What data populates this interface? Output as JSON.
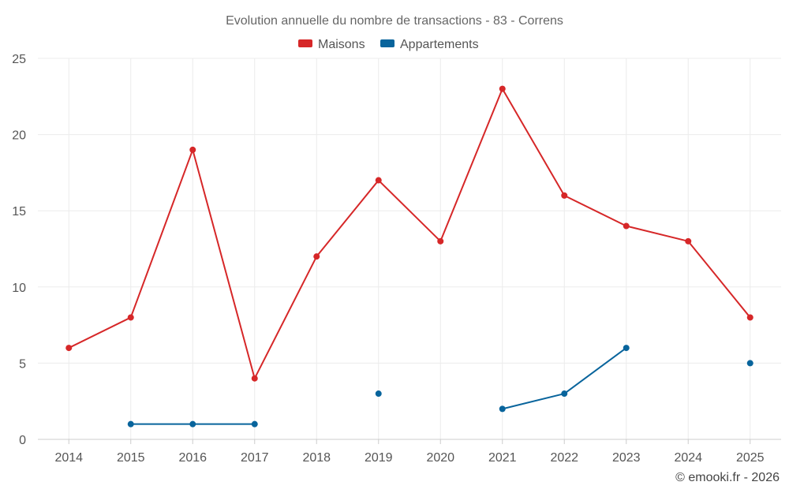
{
  "chart_data": {
    "type": "line",
    "title": "Evolution annuelle du nombre de transactions - 83 - Correns",
    "categories": [
      "2014",
      "2015",
      "2016",
      "2017",
      "2018",
      "2019",
      "2020",
      "2021",
      "2022",
      "2023",
      "2024",
      "2025"
    ],
    "series": [
      {
        "name": "Maisons",
        "color": "#d62728",
        "values": [
          6,
          8,
          19,
          4,
          12,
          17,
          13,
          23,
          16,
          14,
          13,
          8
        ]
      },
      {
        "name": "Appartements",
        "color": "#08649c",
        "values": [
          null,
          1,
          1,
          1,
          null,
          3,
          null,
          2,
          3,
          6,
          null,
          5
        ]
      }
    ],
    "ylim": [
      0,
      25
    ],
    "yticks": [
      0,
      5,
      10,
      15,
      20,
      25
    ],
    "grid": true,
    "legend_position": "top-center",
    "xlabel": "",
    "ylabel": ""
  },
  "credit": "© emooki.fr - 2026"
}
